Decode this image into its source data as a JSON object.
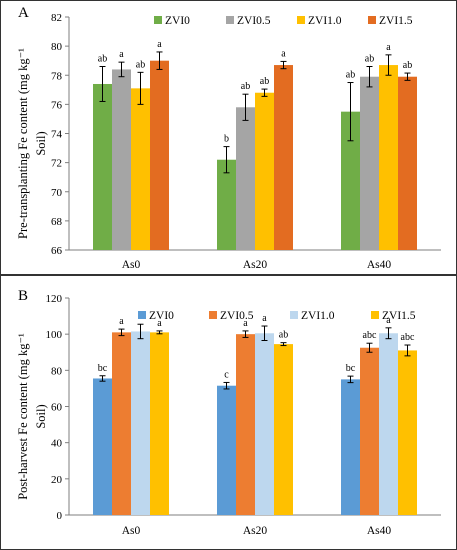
{
  "chart_data": [
    {
      "panel_label": "A",
      "type": "bar",
      "categories": [
        "As0",
        "As20",
        "As40"
      ],
      "ylabel_line1": "Pre-transplanting Fe content (mg kg⁻¹",
      "ylabel_line2": "Soil)",
      "ylim": [
        66,
        82
      ],
      "yticks": [
        "66",
        "68",
        "70",
        "72",
        "74",
        "76",
        "78",
        "80",
        "82"
      ],
      "legend_position": "top",
      "grid": false,
      "series": [
        {
          "name": "ZVI0",
          "color": "#70ad47",
          "values": [
            77.4,
            72.2,
            75.5
          ],
          "errors": [
            1.2,
            0.9,
            2.0
          ],
          "labels": [
            "ab",
            "b",
            "ab"
          ]
        },
        {
          "name": "ZVI0.5",
          "color": "#a5a5a5",
          "values": [
            78.4,
            75.8,
            77.9
          ],
          "errors": [
            0.5,
            0.9,
            0.7
          ],
          "labels": [
            "a",
            "ab",
            "ab"
          ]
        },
        {
          "name": "ZVI1.0",
          "color": "#ffc000",
          "values": [
            77.1,
            76.8,
            78.7
          ],
          "errors": [
            1.1,
            0.25,
            0.7
          ],
          "labels": [
            "ab",
            "ab",
            "a"
          ]
        },
        {
          "name": "ZVI1.5",
          "color": "#e36c21",
          "values": [
            79.0,
            78.7,
            77.9
          ],
          "errors": [
            0.6,
            0.25,
            0.25
          ],
          "labels": [
            "a",
            "a",
            "ab"
          ]
        }
      ]
    },
    {
      "panel_label": "B",
      "type": "bar",
      "categories": [
        "As0",
        "As20",
        "As40"
      ],
      "ylabel_line1": "Post-harvest Fe content (mg kg⁻¹",
      "ylabel_line2": "Soil)",
      "ylim": [
        0,
        120
      ],
      "yticks": [
        "0",
        "20",
        "40",
        "60",
        "80",
        "100",
        "120"
      ],
      "legend_position": "top",
      "grid": false,
      "series": [
        {
          "name": "ZVI0",
          "color": "#5b9bd5",
          "values": [
            75.5,
            71.5,
            75.0
          ],
          "errors": [
            1.5,
            1.8,
            1.8
          ],
          "labels": [
            "bc",
            "c",
            "bc"
          ]
        },
        {
          "name": "ZVI0.5",
          "color": "#ed7d31",
          "values": [
            101.0,
            100.0,
            92.5
          ],
          "errors": [
            1.8,
            1.8,
            2.5
          ],
          "labels": [
            "a",
            "a",
            "abc"
          ]
        },
        {
          "name": "ZVI1.0",
          "color": "#bdd7ee",
          "values": [
            101.5,
            100.5,
            100.5
          ],
          "errors": [
            4.0,
            4.0,
            3.0
          ],
          "labels": [
            "a",
            "a",
            "a"
          ]
        },
        {
          "name": "ZVI1.5",
          "color": "#ffc000",
          "values": [
            101.0,
            94.5,
            91.0
          ],
          "errors": [
            0.8,
            0.8,
            3.0
          ],
          "labels": [
            "a",
            "ab",
            "abc"
          ]
        }
      ]
    }
  ]
}
